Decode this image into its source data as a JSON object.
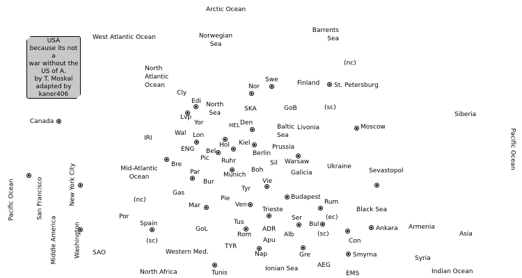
{
  "title_box": {
    "lines": [
      "USA",
      "because its not a",
      "war without the",
      "US of A.",
      "by T. Moskal",
      "adapted by",
      "kaner406"
    ]
  },
  "labels": {
    "arctic_ocean": "Arctic Ocean",
    "west_atlantic_ocean": "West Atlantic Ocean",
    "norwegian_sea": "Norwegian\nSea",
    "barrents_sea": "Barrents\nSea",
    "nc_north": "(nc)",
    "north_atlantic_ocean": "North\nAtlantic\nOcean",
    "swe": "Swe",
    "finland": "Finland",
    "st_petersburg": "St. Petersburg",
    "cly": "Cly",
    "edi": "Edi",
    "north_sea": "North\nSea",
    "nor": "Nor",
    "ska": "SKA",
    "gob": "GoB",
    "sc_stp": "(sc)",
    "lvp": "Lvp",
    "yor": "Yor",
    "siberia": "Siberia",
    "canada": "Canada",
    "hel": "HEL",
    "den": "Den",
    "baltic_sea": "Baltic\nSea",
    "livonia": "Livonia",
    "moscow": "Moscow",
    "wal": "Wal",
    "lon": "Lon",
    "iri": "IRI",
    "hol": "Hol",
    "kiel": "Kiel",
    "prussia": "Prussia",
    "pacific_ocean_east": "Pacific Ocean",
    "eng": "ENG",
    "bel": "Bel",
    "berlin": "Berlin",
    "pic": "Pic",
    "ruhr": "Ruhr",
    "warsaw": "Warsaw",
    "sil": "Sil",
    "bre": "Bre",
    "mid_atlantic_ocean": "Mid-Atlantic\nOcean",
    "ukraine": "Ukraine",
    "boh": "Boh",
    "galicia": "Galicia",
    "sevastopol": "Sevastopol",
    "par": "Par",
    "munich": "Munich",
    "new_york_city": "New York City",
    "bur": "Bur",
    "vie": "Vie",
    "pacific_ocean_west": "Pacific Ocean",
    "san_francisco": "San Francisco",
    "tyr": "Tyr",
    "gas": "Gas",
    "budapest": "Budapest",
    "nc_spain": "(nc)",
    "pie": "Pie",
    "rum": "Rum",
    "mar": "Mar",
    "ven": "Ven",
    "trieste": "Trieste",
    "black_sea": "Black Sea",
    "por": "Por",
    "ser": "Ser",
    "ec_bul": "(ec)",
    "spain": "Spain",
    "tus": "Tus",
    "bul": "Bul",
    "ankara": "Ankara",
    "armenia": "Armenia",
    "gol": "GoL",
    "adr": "ADR",
    "sc_bul": "(sc)",
    "rom": "Rom",
    "alb": "Alb",
    "middle_america": "Middle America",
    "washington": "Washington",
    "sc_spain": "(sc)",
    "con": "Con",
    "asia": "Asia",
    "apu": "Apu",
    "tyr_sea": "TYR",
    "sao": "SAO",
    "western_med": "Western Med.",
    "nap": "Nap",
    "gre": "Gre",
    "smyrna": "Smyrna",
    "syria": "Syria",
    "aeg": "AEG",
    "north_africa": "North Africa",
    "tunis": "Tunis",
    "ionian_sea": "Ionian Sea",
    "ems": "EMS",
    "indian_ocean": "Indian Ocean"
  },
  "supply_centers": [
    "swe",
    "st_petersburg",
    "edi",
    "nor",
    "lvp",
    "canada",
    "den",
    "moscow",
    "lon",
    "hol",
    "kiel",
    "berlin",
    "bel",
    "warsaw",
    "bre",
    "sevastopol",
    "par",
    "munich",
    "new_york_city",
    "vie",
    "san_francisco",
    "budapest",
    "rum",
    "mar",
    "ven",
    "trieste",
    "ser",
    "spain",
    "bul",
    "ankara",
    "rom",
    "washington",
    "con",
    "nap",
    "gre",
    "smyrna",
    "tunis"
  ],
  "colors": {
    "background": "#ffffff",
    "title_box": "#c8c8c8",
    "text": "#000000"
  }
}
